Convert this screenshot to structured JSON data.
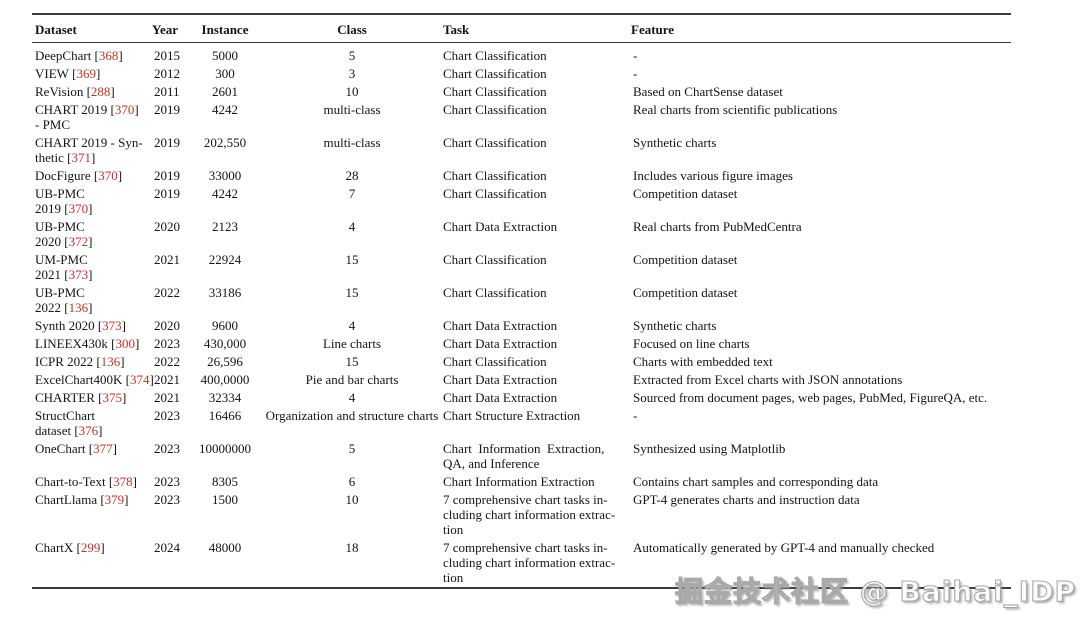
{
  "table": {
    "citation_color": "#cc2f26",
    "rule_color": "#3a3a3a",
    "headers": [
      {
        "label": "Dataset",
        "align": "left"
      },
      {
        "label": "Year",
        "align": "left"
      },
      {
        "label": "Instance",
        "align": "center"
      },
      {
        "label": "Class",
        "align": "center"
      },
      {
        "label": "Task",
        "align": "left"
      },
      {
        "label": "Feature",
        "align": "left"
      }
    ],
    "rows": [
      {
        "dataset": [
          {
            "t": "DeepChart [",
            "cite": false
          },
          {
            "t": "368",
            "cite": true
          },
          {
            "t": "]",
            "cite": false
          }
        ],
        "year": "2015",
        "instance": "5000",
        "class": "5",
        "task": "Chart Classification",
        "feature": "-"
      },
      {
        "dataset": [
          {
            "t": "VIEW [",
            "cite": false
          },
          {
            "t": "369",
            "cite": true
          },
          {
            "t": "]",
            "cite": false
          }
        ],
        "year": "2012",
        "instance": "300",
        "class": "3",
        "task": "Chart Classification",
        "feature": "-"
      },
      {
        "dataset": [
          {
            "t": "ReVision [",
            "cite": false
          },
          {
            "t": "288",
            "cite": true
          },
          {
            "t": "]",
            "cite": false
          }
        ],
        "year": "2011",
        "instance": "2601",
        "class": "10",
        "task": "Chart Classification",
        "feature": "Based on ChartSense dataset"
      },
      {
        "dataset": [
          {
            "t": "CHART 2019 [",
            "cite": false
          },
          {
            "t": "370",
            "cite": true
          },
          {
            "t": "]\n- PMC",
            "cite": false
          }
        ],
        "year": "2019",
        "instance": "4242",
        "class": "multi-class",
        "task": "Chart Classification",
        "feature": "Real charts from scientific publications"
      },
      {
        "dataset": [
          {
            "t": "CHART 2019 - Syn-\nthetic [",
            "cite": false
          },
          {
            "t": "371",
            "cite": true
          },
          {
            "t": "]",
            "cite": false
          }
        ],
        "year": "2019",
        "instance": "202,550",
        "class": "multi-class",
        "task": "Chart Classification",
        "feature": "Synthetic charts"
      },
      {
        "dataset": [
          {
            "t": "DocFigure [",
            "cite": false
          },
          {
            "t": "370",
            "cite": true
          },
          {
            "t": "]",
            "cite": false
          }
        ],
        "year": "2019",
        "instance": "33000",
        "class": "28",
        "task": "Chart Classification",
        "feature": "Includes various figure images"
      },
      {
        "dataset": [
          {
            "t": "UB-PMC\n2019 [",
            "cite": false
          },
          {
            "t": "370",
            "cite": true
          },
          {
            "t": "]",
            "cite": false
          }
        ],
        "year": "2019",
        "instance": "4242",
        "class": "7",
        "task": "Chart Classification",
        "feature": "Competition dataset"
      },
      {
        "dataset": [
          {
            "t": "UB-PMC\n2020 [",
            "cite": false
          },
          {
            "t": "372",
            "cite": true
          },
          {
            "t": "]",
            "cite": false
          }
        ],
        "year": "2020",
        "instance": "2123",
        "class": "4",
        "task": "Chart Data Extraction",
        "feature": "Real charts from PubMedCentra"
      },
      {
        "dataset": [
          {
            "t": "UM-PMC\n2021 [",
            "cite": false
          },
          {
            "t": "373",
            "cite": true
          },
          {
            "t": "]",
            "cite": false
          }
        ],
        "year": "2021",
        "instance": "22924",
        "class": "15",
        "task": "Chart Classification",
        "feature": "Competition dataset"
      },
      {
        "dataset": [
          {
            "t": "UB-PMC\n2022 [",
            "cite": false
          },
          {
            "t": "136",
            "cite": true
          },
          {
            "t": "]",
            "cite": false
          }
        ],
        "year": "2022",
        "instance": "33186",
        "class": "15",
        "task": "Chart Classification",
        "feature": "Competition dataset"
      },
      {
        "dataset": [
          {
            "t": "Synth 2020 [",
            "cite": false
          },
          {
            "t": "373",
            "cite": true
          },
          {
            "t": "]",
            "cite": false
          }
        ],
        "year": "2020",
        "instance": "9600",
        "class": "4",
        "task": "Chart Data Extraction",
        "feature": "Synthetic charts"
      },
      {
        "dataset": [
          {
            "t": "LINEEX430k [",
            "cite": false
          },
          {
            "t": "300",
            "cite": true
          },
          {
            "t": "]",
            "cite": false
          }
        ],
        "year": "2023",
        "instance": "430,000",
        "class": "Line charts",
        "task": "Chart Data Extraction",
        "feature": "Focused on line charts"
      },
      {
        "dataset": [
          {
            "t": "ICPR 2022 [",
            "cite": false
          },
          {
            "t": "136",
            "cite": true
          },
          {
            "t": "]",
            "cite": false
          }
        ],
        "year": "2022",
        "instance": "26,596",
        "class": "15",
        "task": "Chart Classification",
        "feature": "Charts with embedded text"
      },
      {
        "dataset": [
          {
            "t": "ExcelChart400K [",
            "cite": false
          },
          {
            "t": "374",
            "cite": true
          },
          {
            "t": "]",
            "cite": false
          }
        ],
        "year": "2021",
        "instance": "400,0000",
        "class": "Pie and bar charts",
        "task": "Chart Data Extraction",
        "feature": "Extracted from Excel charts with JSON annotations"
      },
      {
        "dataset": [
          {
            "t": "CHARTER [",
            "cite": false
          },
          {
            "t": "375",
            "cite": true
          },
          {
            "t": "]",
            "cite": false
          }
        ],
        "year": "2021",
        "instance": "32334",
        "class": "4",
        "task": "Chart Data Extraction",
        "feature": "Sourced from document pages, web pages, PubMed, FigureQA, etc."
      },
      {
        "dataset": [
          {
            "t": "StructChart\ndataset [",
            "cite": false
          },
          {
            "t": "376",
            "cite": true
          },
          {
            "t": "]",
            "cite": false
          }
        ],
        "year": "2023",
        "instance": "16466",
        "class": "Organization and structure charts",
        "task": "Chart Structure Extraction",
        "feature": "-"
      },
      {
        "dataset": [
          {
            "t": "OneChart [",
            "cite": false
          },
          {
            "t": "377",
            "cite": true
          },
          {
            "t": "]",
            "cite": false
          }
        ],
        "year": "2023",
        "instance": "10000000",
        "class": "5",
        "task": "Chart  Information  Extraction,\nQA, and Inference",
        "feature": "Synthesized using Matplotlib"
      },
      {
        "dataset": [
          {
            "t": "Chart-to-Text [",
            "cite": false
          },
          {
            "t": "378",
            "cite": true
          },
          {
            "t": "]",
            "cite": false
          }
        ],
        "year": "2023",
        "instance": "8305",
        "class": "6",
        "task": "Chart Information Extraction",
        "feature": "Contains chart samples and corresponding data"
      },
      {
        "dataset": [
          {
            "t": "ChartLlama [",
            "cite": false
          },
          {
            "t": "379",
            "cite": true
          },
          {
            "t": "]",
            "cite": false
          }
        ],
        "year": "2023",
        "instance": "1500",
        "class": "10",
        "task": "7 comprehensive chart tasks in-\ncluding chart information extrac-\ntion",
        "feature": "GPT-4 generates charts and instruction data"
      },
      {
        "dataset": [
          {
            "t": "ChartX [",
            "cite": false
          },
          {
            "t": "299",
            "cite": true
          },
          {
            "t": "]",
            "cite": false
          }
        ],
        "year": "2024",
        "instance": "48000",
        "class": "18",
        "task": "7 comprehensive chart tasks in-\ncluding chart information extrac-\ntion",
        "feature": "Automatically generated by GPT-4 and manually checked"
      }
    ]
  },
  "watermark": {
    "text": "掘金技术社区 @ Baihai_IDP"
  }
}
